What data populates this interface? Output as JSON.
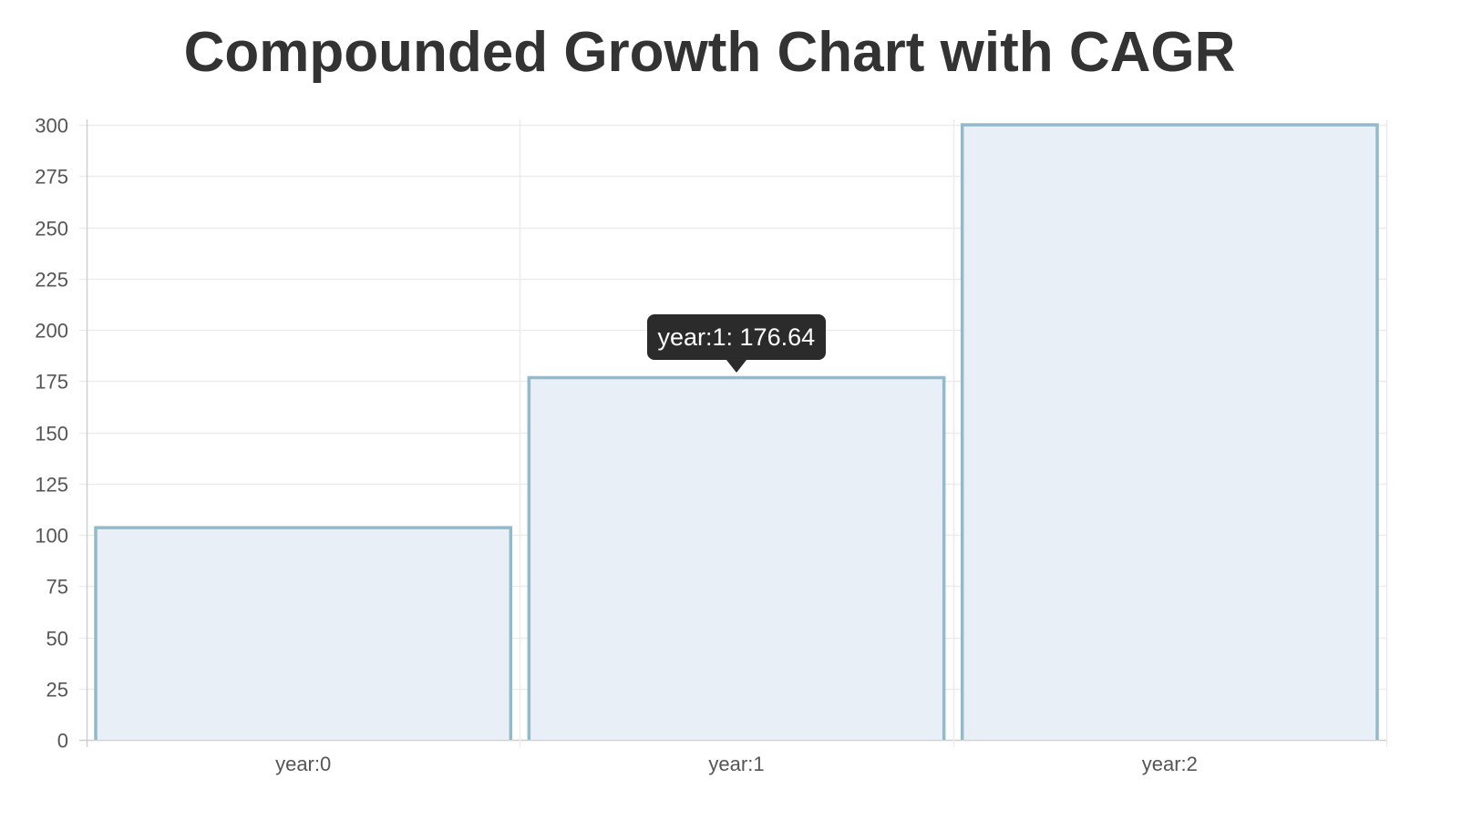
{
  "chart_data": {
    "type": "bar",
    "title": "Compounded Growth Chart with CAGR",
    "categories": [
      "year:0",
      "year:1",
      "year:2"
    ],
    "values": [
      103.5,
      176.64,
      300
    ],
    "ylim": [
      0,
      300
    ],
    "yticks": [
      0,
      25,
      50,
      75,
      100,
      125,
      150,
      175,
      200,
      225,
      250,
      275,
      300
    ],
    "grid": true,
    "bar_fill": "#e8eff6",
    "bar_stroke": "#93bacb",
    "tooltip": {
      "category_index": 1,
      "text": "year:1: 176.64"
    }
  }
}
